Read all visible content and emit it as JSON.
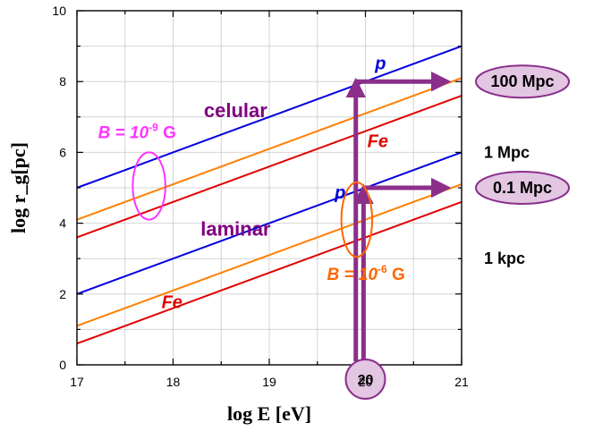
{
  "chart_data": {
    "type": "line",
    "xlabel": "log E [eV]",
    "ylabel": "log r_g[pc]",
    "xlim": [
      17,
      21
    ],
    "ylim": [
      0,
      10
    ],
    "xticks": [
      "17",
      "18",
      "19",
      "20",
      "21"
    ],
    "yticks": [
      "0",
      "2",
      "4",
      "6",
      "8",
      "10"
    ],
    "grid": true,
    "colors": {
      "p": "#0000dd",
      "O": "#ff7f00",
      "Fe": "#e00000",
      "annotation": "#8b2f8b",
      "field1": "#ff33ff",
      "field2": "#ff6600"
    },
    "series": [
      {
        "color": "p",
        "x": [
          17,
          21
        ],
        "y": [
          5.0,
          9.0
        ]
      },
      {
        "color": "O",
        "x": [
          17,
          21
        ],
        "y": [
          4.1,
          8.1
        ]
      },
      {
        "color": "Fe",
        "x": [
          17,
          21
        ],
        "y": [
          3.6,
          7.6
        ]
      },
      {
        "color": "p",
        "x": [
          17,
          21
        ],
        "y": [
          2.0,
          6.0
        ]
      },
      {
        "color": "O",
        "x": [
          17,
          21
        ],
        "y": [
          1.1,
          5.1
        ]
      },
      {
        "color": "Fe",
        "x": [
          17,
          21
        ],
        "y": [
          0.6,
          4.6
        ]
      }
    ],
    "annotations": {
      "series_labels": [
        {
          "text": "p",
          "color": "p",
          "x": 20.1,
          "y": 8.35
        },
        {
          "text": "Fe",
          "color": "Fe",
          "x": 20.02,
          "y": 6.15
        },
        {
          "text": "p",
          "color": "p",
          "x": 19.68,
          "y": 4.7
        },
        {
          "text": "Fe",
          "color": "Fe",
          "x": 17.88,
          "y": 1.6
        }
      ],
      "regions": [
        {
          "text": "celular",
          "x": 18.65,
          "y": 7.0
        },
        {
          "text": "laminar",
          "x": 18.65,
          "y": 3.65
        }
      ],
      "fields": [
        {
          "text_base": "B = 10",
          "exponent": "-9",
          "unit": " G",
          "color": "field1",
          "x": 17.22,
          "y": 6.4,
          "ellipse": {
            "cx": 17.75,
            "cy": 5.05,
            "rx": 0.17,
            "ry": 0.95
          }
        },
        {
          "text_base": "B = 10",
          "exponent": "-6",
          "unit": " G",
          "color": "field2",
          "x": 19.6,
          "y": 2.4,
          "ellipse": {
            "cx": 19.91,
            "cy": 4.1,
            "rx": 0.16,
            "ry": 1.05
          }
        }
      ],
      "distance_labels": [
        {
          "text": "100 Mpc",
          "y": 8.0,
          "boxed": true
        },
        {
          "text": "1 Mpc",
          "y": 6.0,
          "boxed": false
        },
        {
          "text": "0.1 Mpc",
          "y": 5.0,
          "boxed": true
        },
        {
          "text": "1 kpc",
          "y": 3.0,
          "boxed": false
        }
      ],
      "energy_marker": {
        "text": "20",
        "x": 20
      },
      "arrows": [
        {
          "from": [
            19.9,
            0.1
          ],
          "to": [
            19.9,
            8.0
          ]
        },
        {
          "from": [
            19.98,
            0.1
          ],
          "to": [
            19.98,
            5.0
          ]
        },
        {
          "from": [
            19.9,
            8.0
          ],
          "to": [
            20.85,
            8.0
          ]
        },
        {
          "from": [
            19.98,
            5.0
          ],
          "to": [
            20.85,
            5.0
          ]
        }
      ]
    }
  }
}
